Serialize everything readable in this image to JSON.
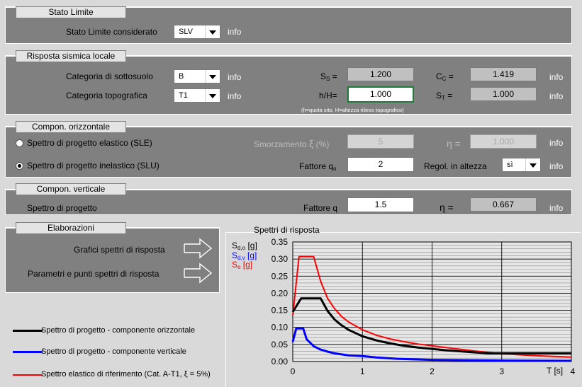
{
  "stato_limite": {
    "title": "Stato Limite",
    "label": "Stato Limite considerato",
    "value": "SLV",
    "info": "info"
  },
  "risposta": {
    "title": "Risposta sismica locale",
    "cat_sottosuolo_label": "Categoria di sottosuolo",
    "cat_sottosuolo_value": "B",
    "cat_topo_label": "Categoria topografica",
    "cat_topo_value": "T1",
    "info": "info",
    "ss_label_main": "S",
    "ss_label_sub": "S",
    "ss_label_eq": " =",
    "ss_value": "1.200",
    "cc_label_main": "C",
    "cc_label_sub": "C",
    "cc_label_eq": " =",
    "cc_value": "1.419",
    "hh_label": "h/H=",
    "hh_value": "1.000",
    "hh_note": "(h=quota sito, H=altezza rilievo topografico)",
    "st_label_main": "S",
    "st_label_sub": "T",
    "st_label_eq": " =",
    "st_value": "1.000"
  },
  "orizzontale": {
    "title": "Compon. orizzontale",
    "radio_sle": "Spettro di progetto elastico (SLE)",
    "radio_slu": "Spettro di progetto inelastico (SLU)",
    "smorz_label": "Smorzamento",
    "smorz_sym": "ξ",
    "smorz_unit": "(%)",
    "smorz_value": "5",
    "eta_label": "η =",
    "eta_value": "1.000",
    "fattore_label": "Fattore q",
    "fattore_sub": "o",
    "fattore_value": "2",
    "regol_label": "Regol. in altezza",
    "regol_value": "sì",
    "info": "info"
  },
  "verticale": {
    "title": "Compon. verticale",
    "label": "Spettro di progetto",
    "fattore_label": "Fattore q",
    "fattore_value": "1.5",
    "eta_label": "η =",
    "eta_value": "0.667",
    "info": "info"
  },
  "elaborazioni": {
    "title": "Elaborazioni",
    "btn1": "Grafici spettri di risposta",
    "btn2": "Parametri e punti spettri di risposta"
  },
  "legend": {
    "item1": "Spettro di progetto - componente orizzontale",
    "item2": "Spettro di progetto - componente verticale",
    "item3": "Spettro elastico di riferimento (Cat. A-T1, ξ = 5%)",
    "color1": "#000000",
    "color2": "#0000ff",
    "color3": "#ff0000"
  },
  "chart_data": {
    "type": "line",
    "title": "Spettri di risposta",
    "xlabel": "T [s]",
    "ylabel_series": [
      {
        "main": "S",
        "sub": "d,o",
        "unit": " [g]",
        "color": "#000000"
      },
      {
        "main": "S",
        "sub": "d,v",
        "unit": " [g]",
        "color": "#0000ff"
      },
      {
        "main": "S",
        "sub": "e",
        "unit": " [g]",
        "color": "#ff0000"
      }
    ],
    "xlim": [
      0,
      4
    ],
    "ylim": [
      0,
      0.35
    ],
    "x_ticks": [
      "0",
      "1",
      "2",
      "3",
      "4"
    ],
    "y_ticks": [
      "0.00",
      "0.05",
      "0.10",
      "0.15",
      "0.20",
      "0.25",
      "0.30",
      "0.35"
    ],
    "series": [
      {
        "name": "Spettro di progetto - componente orizzontale",
        "color": "#000000",
        "points": [
          [
            0,
            0.145
          ],
          [
            0.12,
            0.185
          ],
          [
            0.2,
            0.185
          ],
          [
            0.4,
            0.185
          ],
          [
            0.5,
            0.148
          ],
          [
            0.6,
            0.123
          ],
          [
            0.7,
            0.106
          ],
          [
            0.8,
            0.093
          ],
          [
            1.0,
            0.074
          ],
          [
            1.2,
            0.062
          ],
          [
            1.4,
            0.053
          ],
          [
            1.6,
            0.046
          ],
          [
            1.8,
            0.041
          ],
          [
            2.0,
            0.037
          ],
          [
            2.2,
            0.033
          ],
          [
            2.4,
            0.03
          ],
          [
            2.6,
            0.027
          ],
          [
            2.8,
            0.024
          ],
          [
            3.0,
            0.024
          ],
          [
            3.5,
            0.024
          ],
          [
            4.0,
            0.024
          ]
        ]
      },
      {
        "name": "Spettro di progetto - componente verticale",
        "color": "#0000ff",
        "points": [
          [
            0,
            0.058
          ],
          [
            0.05,
            0.097
          ],
          [
            0.15,
            0.097
          ],
          [
            0.2,
            0.065
          ],
          [
            0.3,
            0.045
          ],
          [
            0.4,
            0.035
          ],
          [
            0.5,
            0.029
          ],
          [
            0.6,
            0.024
          ],
          [
            0.8,
            0.018
          ],
          [
            1.0,
            0.016
          ],
          [
            1.2,
            0.012
          ],
          [
            1.5,
            0.008
          ],
          [
            2.0,
            0.005
          ],
          [
            3.0,
            0.003
          ],
          [
            4.0,
            0.002
          ]
        ]
      },
      {
        "name": "Spettro elastico di riferimento (Cat. A-T1, ξ = 5%)",
        "color": "#ff0000",
        "points": [
          [
            0,
            0.135
          ],
          [
            0.09,
            0.307
          ],
          [
            0.3,
            0.307
          ],
          [
            0.4,
            0.235
          ],
          [
            0.5,
            0.185
          ],
          [
            0.6,
            0.155
          ],
          [
            0.7,
            0.132
          ],
          [
            0.8,
            0.116
          ],
          [
            1.0,
            0.093
          ],
          [
            1.2,
            0.077
          ],
          [
            1.4,
            0.066
          ],
          [
            1.6,
            0.058
          ],
          [
            1.8,
            0.051
          ],
          [
            2.0,
            0.046
          ],
          [
            2.2,
            0.041
          ],
          [
            2.4,
            0.036
          ],
          [
            2.6,
            0.031
          ],
          [
            2.8,
            0.027
          ],
          [
            3.0,
            0.023
          ],
          [
            3.3,
            0.019
          ],
          [
            3.6,
            0.016
          ],
          [
            4.0,
            0.013
          ]
        ]
      }
    ]
  }
}
